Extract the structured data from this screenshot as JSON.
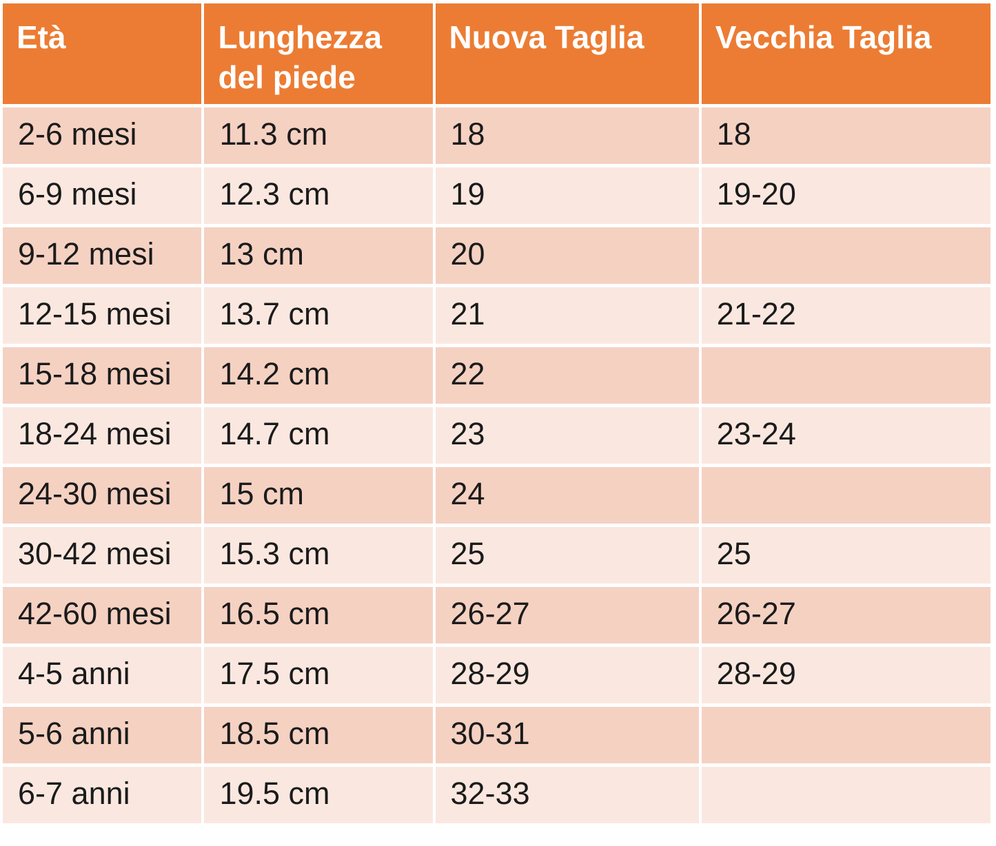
{
  "chart_data": {
    "type": "table",
    "title": "",
    "columns": [
      "Età",
      "Lunghezza del piede",
      "Nuova Taglia",
      "Vecchia Taglia"
    ],
    "rows": [
      [
        "2-6 mesi",
        "11.3 cm",
        "18",
        "18"
      ],
      [
        "6-9 mesi",
        "12.3 cm",
        "19",
        "19-20"
      ],
      [
        "9-12 mesi",
        "13 cm",
        "20",
        ""
      ],
      [
        "12-15 mesi",
        "13.7 cm",
        "21",
        "21-22"
      ],
      [
        "15-18 mesi",
        "14.2 cm",
        "22",
        ""
      ],
      [
        "18-24 mesi",
        "14.7 cm",
        "23",
        "23-24"
      ],
      [
        "24-30 mesi",
        "15 cm",
        "24",
        ""
      ],
      [
        "30-42 mesi",
        "15.3 cm",
        "25",
        "25"
      ],
      [
        "42-60 mesi",
        "16.5 cm",
        "26-27",
        "26-27"
      ],
      [
        "4-5 anni",
        "17.5 cm",
        "28-29",
        "28-29"
      ],
      [
        "5-6 anni",
        "18.5 cm",
        "30-31",
        ""
      ],
      [
        "6-7 anni",
        "19.5 cm",
        "32-33",
        ""
      ]
    ],
    "layout": {
      "banded_rows": true,
      "header_row": true,
      "grid": "white dividers between cells"
    }
  },
  "colors": {
    "header_bg": "#EC7C33",
    "header_text": "#FFFFFF",
    "row_odd_bg": "#F5D1C2",
    "row_even_bg": "#FAE8E0",
    "body_text": "#1B1B1B",
    "divider": "#FFFFFF"
  }
}
